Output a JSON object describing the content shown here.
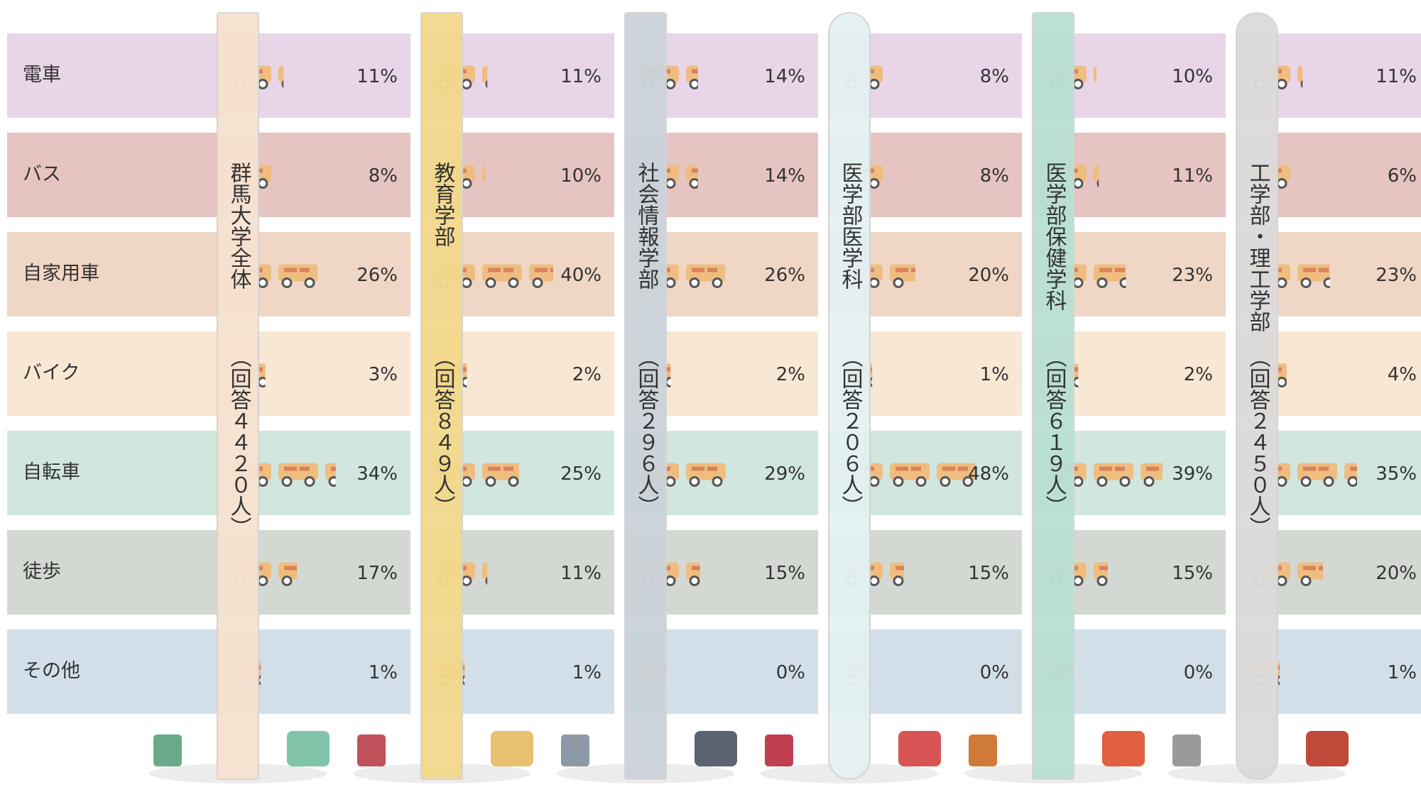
{
  "chart_data": {
    "type": "pictogram",
    "categories": [
      "電車",
      "バス",
      "自家用車",
      "バイク",
      "自転車",
      "徒歩",
      "その他"
    ],
    "row_colors": [
      "#e8d5e8",
      "#e5c4c2",
      "#f0d6c4",
      "#f8e7d3",
      "#d1e6de",
      "#d3d9d2",
      "#d3dfe8"
    ],
    "series": [
      {
        "name": "群馬大学全体",
        "note": "（回答４４２０人）",
        "color": "#f7e2d0",
        "values": [
          11,
          8,
          26,
          3,
          34,
          17,
          1
        ],
        "value_labels": [
          "11%",
          "8%",
          "26%",
          "3%",
          "34%",
          "17%",
          "1%"
        ]
      },
      {
        "name": "教育学部",
        "note": "（回答８４９人）",
        "color": "#f3d98c",
        "values": [
          11,
          10,
          40,
          2,
          25,
          11,
          1
        ],
        "value_labels": [
          "11%",
          "10%",
          "40%",
          "2%",
          "25%",
          "11%",
          "1%"
        ]
      },
      {
        "name": "社会情報学部",
        "note": "（回答２９６人）",
        "color": "#cbd3da",
        "values": [
          14,
          14,
          26,
          2,
          29,
          15,
          0
        ],
        "value_labels": [
          "14%",
          "14%",
          "26%",
          "2%",
          "29%",
          "15%",
          "0%"
        ]
      },
      {
        "name": "医学部医学科",
        "note": "（回答２０６人）",
        "color": "#e4f1f3",
        "values": [
          8,
          8,
          20,
          1,
          48,
          15,
          0
        ],
        "value_labels": [
          "8%",
          "8%",
          "20%",
          "1%",
          "48%",
          "15%",
          "0%"
        ]
      },
      {
        "name": "医学部保健学科",
        "note": "（回答６１９人）",
        "color": "#b9e0d4",
        "values": [
          10,
          11,
          23,
          2,
          39,
          15,
          0
        ],
        "value_labels": [
          "10%",
          "11%",
          "23%",
          "2%",
          "39%",
          "15%",
          "0%"
        ]
      },
      {
        "name": "工学部・理工学部",
        "note": "（回答２４５０人）",
        "color": "#dcdbdb",
        "values": [
          11,
          6,
          23,
          4,
          35,
          20,
          1
        ],
        "value_labels": [
          "11%",
          "6%",
          "23%",
          "4%",
          "35%",
          "20%",
          "1%"
        ]
      }
    ],
    "icon_color": "#efbd80"
  }
}
